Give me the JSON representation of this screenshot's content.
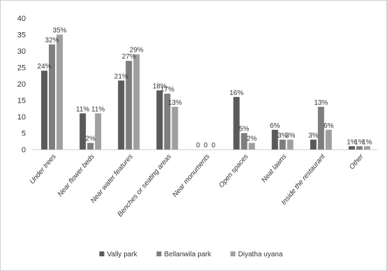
{
  "chart_data": {
    "type": "bar",
    "title": "",
    "xlabel": "",
    "ylabel": "",
    "ylim": [
      0,
      40
    ],
    "yticks": [
      0,
      5,
      10,
      15,
      20,
      25,
      30,
      35,
      40
    ],
    "grid": false,
    "legend_position": "bottom",
    "categories": [
      "Under trees",
      "Near flower beds",
      "Near water features",
      "Benches or seating areas",
      "Near monuments",
      "Open spaces",
      "Neat lawns",
      "Inside the restaurant",
      "Other"
    ],
    "series": [
      {
        "name": "Vally park",
        "color": "#5a5a5a",
        "values": [
          24,
          11,
          21,
          18,
          0,
          16,
          6,
          3,
          1
        ],
        "labels": [
          "24%",
          "11%",
          "21%",
          "18%",
          "0",
          "16%",
          "6%",
          "3%",
          "1%"
        ]
      },
      {
        "name": "Bellanwila park",
        "color": "#7e7e7e",
        "values": [
          32,
          2,
          27,
          17,
          0,
          5,
          3,
          13,
          1
        ],
        "labels": [
          "32%",
          "2%",
          "27%",
          "17%",
          "0",
          "5%",
          "3%",
          "13%",
          "1%"
        ]
      },
      {
        "name": "Diyatha uyana",
        "color": "#a0a0a0",
        "values": [
          35,
          11,
          29,
          13,
          0,
          2,
          3,
          6,
          1
        ],
        "labels": [
          "35%",
          "11%",
          "29%",
          "13%",
          "0",
          "2%",
          "3%",
          "6%",
          "1%"
        ]
      }
    ]
  }
}
